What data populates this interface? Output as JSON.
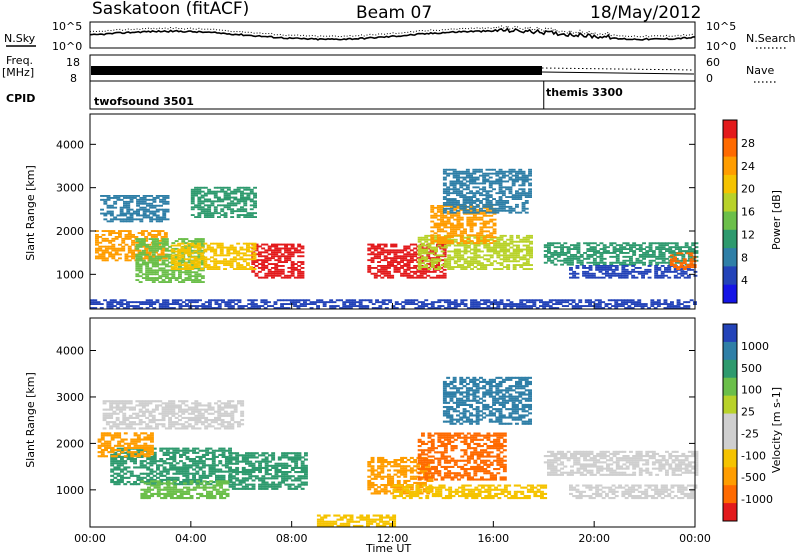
{
  "header": {
    "station": "Saskatoon (fitACF)",
    "beam": "Beam 07",
    "date": "18/May/2012"
  },
  "noise_panel": {
    "left_label": "N.Sky",
    "left_ticks": [
      "10^5",
      "10^0"
    ],
    "right_ticks": [
      "10^5",
      "10^0"
    ],
    "right_label": "N.Search"
  },
  "freq_panel": {
    "left_label_top": "Freq.",
    "left_label_unit": "[MHz]",
    "left_ticks": [
      "18",
      "8"
    ],
    "right_ticks": [
      "60",
      "0"
    ],
    "right_label": "Nave"
  },
  "cpid_panel": {
    "label": "CPID",
    "modes": [
      {
        "name": "twofsound 3501",
        "start_hour": 0,
        "end_hour": 18
      },
      {
        "name": "themis 3300",
        "start_hour": 18,
        "end_hour": 24
      }
    ]
  },
  "x_axis": {
    "label": "Time UT",
    "ticks": [
      "00:00",
      "04:00",
      "08:00",
      "12:00",
      "16:00",
      "20:00",
      "00:00"
    ],
    "range_hours": [
      0,
      24
    ]
  },
  "chart_data": [
    {
      "type": "heatmap",
      "panel": "power",
      "ylabel": "Slant Range [km]",
      "yticks": [
        1000,
        2000,
        3000,
        4000
      ],
      "ylim": [
        200,
        4700
      ],
      "xlim_hours": [
        0,
        24
      ],
      "colorbar": {
        "label": "Power [dB]",
        "ticks": [
          "28",
          "24",
          "20",
          "16",
          "12",
          "8",
          "4"
        ],
        "colors": [
          "#e31a1c",
          "#ff6a00",
          "#ff9d00",
          "#f5c300",
          "#b8d22a",
          "#6bbf4a",
          "#2e9a6e",
          "#2f7fa7",
          "#2343b8",
          "#1515e6"
        ]
      },
      "regions": [
        {
          "t0": 0.2,
          "t1": 3.0,
          "r0": 1300,
          "r1": 2000,
          "color": "#ff9d00"
        },
        {
          "t0": 1.8,
          "t1": 4.5,
          "r0": 800,
          "r1": 1800,
          "color": "#6bbf4a"
        },
        {
          "t0": 6.4,
          "t1": 8.4,
          "r0": 900,
          "r1": 1700,
          "color": "#e31a1c"
        },
        {
          "t0": 0.4,
          "t1": 3.0,
          "r0": 2200,
          "r1": 2800,
          "color": "#2f7fa7"
        },
        {
          "t0": 3.2,
          "t1": 6.5,
          "r0": 1100,
          "r1": 1700,
          "color": "#f5c300"
        },
        {
          "t0": 4.0,
          "t1": 6.5,
          "r0": 2300,
          "r1": 3000,
          "color": "#2e9a6e"
        },
        {
          "t0": 11.0,
          "t1": 14.0,
          "r0": 900,
          "r1": 1700,
          "color": "#e31a1c"
        },
        {
          "t0": 13.0,
          "t1": 17.5,
          "r0": 1100,
          "r1": 1900,
          "color": "#b8d22a"
        },
        {
          "t0": 13.5,
          "t1": 16.0,
          "r0": 1700,
          "r1": 2600,
          "color": "#ff9d00"
        },
        {
          "t0": 14.0,
          "t1": 17.5,
          "r0": 2400,
          "r1": 3400,
          "color": "#2f7fa7"
        },
        {
          "t0": 18.0,
          "t1": 24.0,
          "r0": 1200,
          "r1": 1700,
          "color": "#2e9a6e"
        },
        {
          "t0": 19.0,
          "t1": 24.0,
          "r0": 900,
          "r1": 1200,
          "color": "#2343b8"
        },
        {
          "t0": 23.0,
          "t1": 24.0,
          "r0": 1100,
          "r1": 1500,
          "color": "#ff6a00"
        },
        {
          "t0": 0.0,
          "t1": 24.0,
          "r0": 200,
          "r1": 400,
          "color": "#2343b8"
        }
      ]
    },
    {
      "type": "heatmap",
      "panel": "velocity",
      "ylabel": "Slant Range [km]",
      "yticks": [
        1000,
        2000,
        3000,
        4000
      ],
      "ylim": [
        200,
        4700
      ],
      "xlim_hours": [
        0,
        24
      ],
      "colorbar": {
        "label": "Velocity [m s-1]",
        "ticks": [
          "1000",
          "500",
          "100",
          "25",
          "-25",
          "-100",
          "-500",
          "-1000"
        ],
        "colors": [
          "#2343b8",
          "#2f7fa7",
          "#2e9a6e",
          "#6bbf4a",
          "#b8d22a",
          "#cfcfcf",
          "#cfcfcf",
          "#f5c300",
          "#ff9d00",
          "#ff6a00",
          "#e31a1c"
        ]
      },
      "regions": [
        {
          "t0": 0.8,
          "t1": 5.5,
          "r0": 1100,
          "r1": 1900,
          "color": "#2e9a6e"
        },
        {
          "t0": 2.0,
          "t1": 5.5,
          "r0": 800,
          "r1": 1200,
          "color": "#6bbf4a"
        },
        {
          "t0": 5.5,
          "t1": 8.5,
          "r0": 1000,
          "r1": 1800,
          "color": "#2e9a6e"
        },
        {
          "t0": 0.3,
          "t1": 2.5,
          "r0": 1700,
          "r1": 2200,
          "color": "#ff9d00"
        },
        {
          "t0": 0.5,
          "t1": 6.0,
          "r0": 2300,
          "r1": 2900,
          "color": "#cfcfcf"
        },
        {
          "t0": 11.0,
          "t1": 13.5,
          "r0": 900,
          "r1": 1700,
          "color": "#ff9d00"
        },
        {
          "t0": 13.0,
          "t1": 16.5,
          "r0": 1200,
          "r1": 2200,
          "color": "#ff6a00"
        },
        {
          "t0": 14.0,
          "t1": 17.5,
          "r0": 2400,
          "r1": 3400,
          "color": "#2f7fa7"
        },
        {
          "t0": 12.0,
          "t1": 18.0,
          "r0": 800,
          "r1": 1100,
          "color": "#f5c300"
        },
        {
          "t0": 18.0,
          "t1": 24.0,
          "r0": 1300,
          "r1": 1800,
          "color": "#cfcfcf"
        },
        {
          "t0": 19.0,
          "t1": 24.0,
          "r0": 800,
          "r1": 1100,
          "color": "#cfcfcf"
        },
        {
          "t0": 9.0,
          "t1": 12.0,
          "r0": 200,
          "r1": 450,
          "color": "#f5c300"
        }
      ]
    }
  ]
}
